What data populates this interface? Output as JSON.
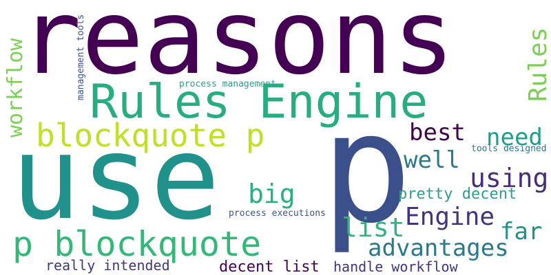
{
  "words": [
    {
      "text": "reasons",
      "color": "#440154"
    },
    {
      "text": "use",
      "color": "#21918c"
    },
    {
      "text": "p",
      "color": "#3b4f8b"
    },
    {
      "text": "Rules Engine",
      "color": "#27ad81"
    },
    {
      "text": "blockquote p",
      "color": "#c0df25"
    },
    {
      "text": "p blockquote",
      "color": "#35b779"
    },
    {
      "text": "workflow",
      "color": "#7ad151"
    },
    {
      "text": "Rules",
      "color": "#7ad151"
    },
    {
      "text": "best",
      "color": "#440154"
    },
    {
      "text": "need",
      "color": "#1f9e89"
    },
    {
      "text": "well",
      "color": "#2a788e"
    },
    {
      "text": "using",
      "color": "#472d7b"
    },
    {
      "text": "big",
      "color": "#2ab07f"
    },
    {
      "text": "pretty decent",
      "color": "#2e9f88"
    },
    {
      "text": "Engine",
      "color": "#46337e"
    },
    {
      "text": "list",
      "color": "#2fb47c"
    },
    {
      "text": "far",
      "color": "#21918c"
    },
    {
      "text": "advantages",
      "color": "#2a788e"
    },
    {
      "text": "process management",
      "color": "#2a9d8f"
    },
    {
      "text": "management tools",
      "color": "#3b528b"
    },
    {
      "text": "tools designed",
      "color": "#2a788e"
    },
    {
      "text": "process executions",
      "color": "#3b528b"
    },
    {
      "text": "really intended",
      "color": "#46337e"
    },
    {
      "text": "decent list",
      "color": "#440154"
    },
    {
      "text": "handle workflow",
      "color": "#46337e"
    }
  ]
}
